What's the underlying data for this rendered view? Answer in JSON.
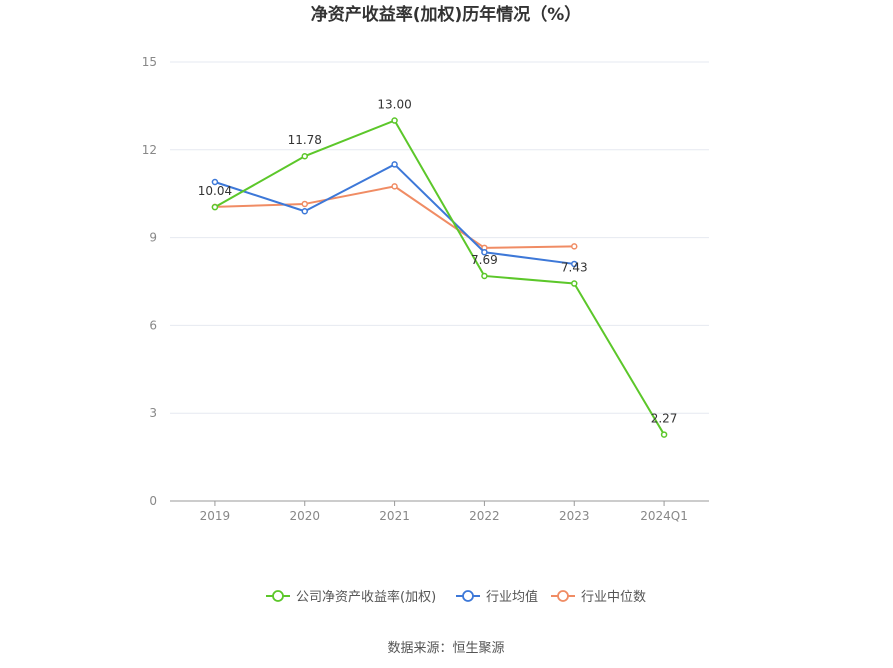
{
  "chart_data": {
    "type": "line",
    "title": "净资产收益率(加权)历年情况（%）",
    "categories": [
      "2019",
      "2020",
      "2021",
      "2022",
      "2023",
      "2024Q1"
    ],
    "ylim": [
      0,
      15
    ],
    "yticks": [
      "0",
      "3",
      "6",
      "9",
      "12",
      "15"
    ],
    "grid": true,
    "legend_position": "bottom",
    "series": [
      {
        "name": "公司净资产收益率(加权)",
        "color": "#5cc72a",
        "values": [
          10.04,
          11.78,
          13.0,
          7.69,
          7.43,
          2.27
        ],
        "labels": [
          "10.04",
          "11.78",
          "13.00",
          "7.69",
          "7.43",
          "2.27"
        ]
      },
      {
        "name": "行业均值",
        "color": "#3d78d8",
        "values": [
          10.9,
          9.9,
          11.5,
          8.5,
          8.1,
          null
        ]
      },
      {
        "name": "行业中位数",
        "color": "#f08c64",
        "values": [
          10.05,
          10.15,
          10.75,
          8.65,
          8.7,
          null
        ]
      }
    ]
  },
  "source": "数据来源：恒生聚源"
}
